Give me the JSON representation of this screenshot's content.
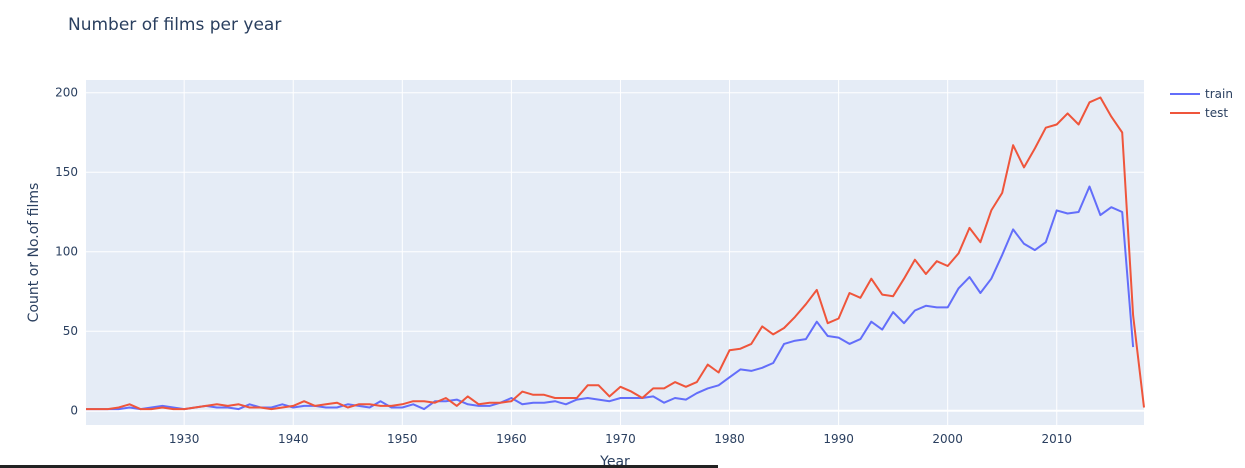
{
  "chart_data": {
    "type": "line",
    "title": "Number of films per year",
    "xlabel": "Year",
    "ylabel": "Count or No.of films",
    "xlim": [
      1921,
      2018
    ],
    "ylim": [
      -9,
      208
    ],
    "x_ticks": [
      1930,
      1940,
      1950,
      1960,
      1970,
      1980,
      1990,
      2000,
      2010
    ],
    "y_ticks": [
      0,
      50,
      100,
      150,
      200
    ],
    "grid": true,
    "legend_position": "top-right",
    "series": [
      {
        "name": "train",
        "color": "#636efa",
        "points": [
          [
            1921,
            1
          ],
          [
            1922,
            1
          ],
          [
            1923,
            1
          ],
          [
            1924,
            1
          ],
          [
            1925,
            2
          ],
          [
            1926,
            1
          ],
          [
            1927,
            2
          ],
          [
            1928,
            3
          ],
          [
            1929,
            2
          ],
          [
            1930,
            1
          ],
          [
            1931,
            2
          ],
          [
            1932,
            3
          ],
          [
            1933,
            2
          ],
          [
            1934,
            2
          ],
          [
            1935,
            1
          ],
          [
            1936,
            4
          ],
          [
            1937,
            2
          ],
          [
            1938,
            2
          ],
          [
            1939,
            4
          ],
          [
            1940,
            2
          ],
          [
            1941,
            3
          ],
          [
            1942,
            3
          ],
          [
            1943,
            2
          ],
          [
            1944,
            2
          ],
          [
            1945,
            4
          ],
          [
            1946,
            3
          ],
          [
            1947,
            2
          ],
          [
            1948,
            6
          ],
          [
            1949,
            2
          ],
          [
            1950,
            2
          ],
          [
            1951,
            4
          ],
          [
            1952,
            1
          ],
          [
            1953,
            6
          ],
          [
            1954,
            6
          ],
          [
            1955,
            7
          ],
          [
            1956,
            4
          ],
          [
            1957,
            3
          ],
          [
            1958,
            3
          ],
          [
            1959,
            5
          ],
          [
            1960,
            8
          ],
          [
            1961,
            4
          ],
          [
            1962,
            5
          ],
          [
            1963,
            5
          ],
          [
            1964,
            6
          ],
          [
            1965,
            4
          ],
          [
            1966,
            7
          ],
          [
            1967,
            8
          ],
          [
            1968,
            7
          ],
          [
            1969,
            6
          ],
          [
            1970,
            8
          ],
          [
            1971,
            8
          ],
          [
            1972,
            8
          ],
          [
            1973,
            9
          ],
          [
            1974,
            5
          ],
          [
            1975,
            8
          ],
          [
            1976,
            7
          ],
          [
            1977,
            11
          ],
          [
            1978,
            14
          ],
          [
            1979,
            16
          ],
          [
            1980,
            21
          ],
          [
            1981,
            26
          ],
          [
            1982,
            25
          ],
          [
            1983,
            27
          ],
          [
            1984,
            30
          ],
          [
            1985,
            42
          ],
          [
            1986,
            44
          ],
          [
            1987,
            45
          ],
          [
            1988,
            56
          ],
          [
            1989,
            47
          ],
          [
            1990,
            46
          ],
          [
            1991,
            42
          ],
          [
            1992,
            45
          ],
          [
            1993,
            56
          ],
          [
            1994,
            51
          ],
          [
            1995,
            62
          ],
          [
            1996,
            55
          ],
          [
            1997,
            63
          ],
          [
            1998,
            66
          ],
          [
            1999,
            65
          ],
          [
            2000,
            65
          ],
          [
            2001,
            77
          ],
          [
            2002,
            84
          ],
          [
            2003,
            74
          ],
          [
            2004,
            83
          ],
          [
            2005,
            98
          ],
          [
            2006,
            114
          ],
          [
            2007,
            105
          ],
          [
            2008,
            101
          ],
          [
            2009,
            106
          ],
          [
            2010,
            126
          ],
          [
            2011,
            124
          ],
          [
            2012,
            125
          ],
          [
            2013,
            141
          ],
          [
            2014,
            123
          ],
          [
            2015,
            128
          ],
          [
            2016,
            125
          ],
          [
            2017,
            40
          ]
        ]
      },
      {
        "name": "test",
        "color": "#ef553b",
        "points": [
          [
            1921,
            1
          ],
          [
            1922,
            1
          ],
          [
            1923,
            1
          ],
          [
            1924,
            2
          ],
          [
            1925,
            4
          ],
          [
            1926,
            1
          ],
          [
            1927,
            1
          ],
          [
            1928,
            2
          ],
          [
            1929,
            1
          ],
          [
            1930,
            1
          ],
          [
            1931,
            2
          ],
          [
            1932,
            3
          ],
          [
            1933,
            4
          ],
          [
            1934,
            3
          ],
          [
            1935,
            4
          ],
          [
            1936,
            2
          ],
          [
            1937,
            2
          ],
          [
            1938,
            1
          ],
          [
            1939,
            2
          ],
          [
            1940,
            3
          ],
          [
            1941,
            6
          ],
          [
            1942,
            3
          ],
          [
            1943,
            4
          ],
          [
            1944,
            5
          ],
          [
            1945,
            2
          ],
          [
            1946,
            4
          ],
          [
            1947,
            4
          ],
          [
            1948,
            3
          ],
          [
            1949,
            3
          ],
          [
            1950,
            4
          ],
          [
            1951,
            6
          ],
          [
            1952,
            6
          ],
          [
            1953,
            5
          ],
          [
            1954,
            8
          ],
          [
            1955,
            3
          ],
          [
            1956,
            9
          ],
          [
            1957,
            4
          ],
          [
            1958,
            5
          ],
          [
            1959,
            5
          ],
          [
            1960,
            6
          ],
          [
            1961,
            12
          ],
          [
            1962,
            10
          ],
          [
            1963,
            10
          ],
          [
            1964,
            8
          ],
          [
            1965,
            8
          ],
          [
            1966,
            8
          ],
          [
            1967,
            16
          ],
          [
            1968,
            16
          ],
          [
            1969,
            9
          ],
          [
            1970,
            15
          ],
          [
            1971,
            12
          ],
          [
            1972,
            8
          ],
          [
            1973,
            14
          ],
          [
            1974,
            14
          ],
          [
            1975,
            18
          ],
          [
            1976,
            15
          ],
          [
            1977,
            18
          ],
          [
            1978,
            29
          ],
          [
            1979,
            24
          ],
          [
            1980,
            38
          ],
          [
            1981,
            39
          ],
          [
            1982,
            42
          ],
          [
            1983,
            53
          ],
          [
            1984,
            48
          ],
          [
            1985,
            52
          ],
          [
            1986,
            59
          ],
          [
            1987,
            67
          ],
          [
            1988,
            76
          ],
          [
            1989,
            55
          ],
          [
            1990,
            58
          ],
          [
            1991,
            74
          ],
          [
            1992,
            71
          ],
          [
            1993,
            83
          ],
          [
            1994,
            73
          ],
          [
            1995,
            72
          ],
          [
            1996,
            83
          ],
          [
            1997,
            95
          ],
          [
            1998,
            86
          ],
          [
            1999,
            94
          ],
          [
            2000,
            91
          ],
          [
            2001,
            99
          ],
          [
            2002,
            115
          ],
          [
            2003,
            106
          ],
          [
            2004,
            126
          ],
          [
            2005,
            137
          ],
          [
            2006,
            167
          ],
          [
            2007,
            153
          ],
          [
            2008,
            165
          ],
          [
            2009,
            178
          ],
          [
            2010,
            180
          ],
          [
            2011,
            187
          ],
          [
            2012,
            180
          ],
          [
            2013,
            194
          ],
          [
            2014,
            197
          ],
          [
            2015,
            185
          ],
          [
            2016,
            175
          ],
          [
            2017,
            60
          ],
          [
            2018,
            2
          ]
        ]
      }
    ]
  }
}
